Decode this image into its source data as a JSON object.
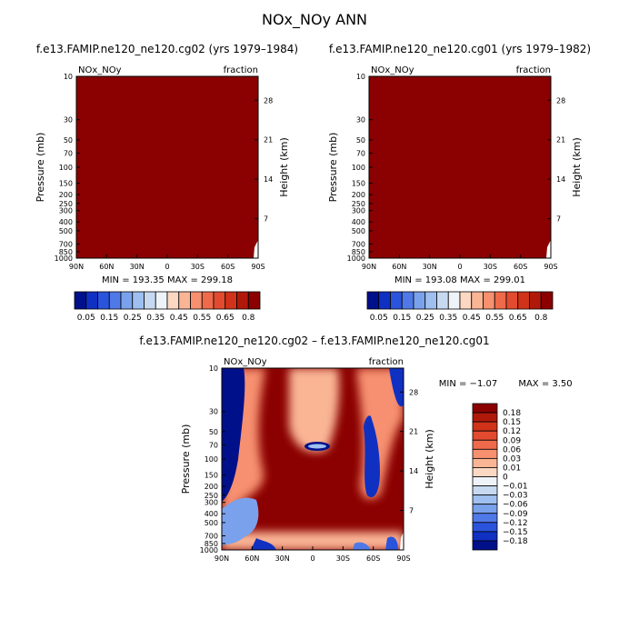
{
  "page": {
    "title": "NOx_NOy ANN"
  },
  "chart_data": [
    {
      "type": "heatmap",
      "title": "f.e13.FAMIP.ne120_ne120.cg02 (yrs 1979–1984)",
      "left_label": "NOx_NOy",
      "right_label": "fraction",
      "ylabel": "Pressure (mb)",
      "ylabel_right": "Height (km)",
      "x_ticks": [
        "90N",
        "60N",
        "30N",
        "0",
        "30S",
        "60S",
        "90S"
      ],
      "y_ticks": [
        "10",
        "30",
        "50",
        "70",
        "100",
        "150",
        "200",
        "250",
        "300",
        "400",
        "500",
        "700",
        "850",
        "1000"
      ],
      "y_right_ticks": [
        "28",
        "21",
        "14",
        "7"
      ],
      "min_max_text": "MIN = 193.35   MAX = 299.18",
      "colorbar": {
        "labels": [
          "0.05",
          "0.15",
          "0.25",
          "0.35",
          "0.45",
          "0.55",
          "0.65",
          "0.8"
        ]
      },
      "field": "uniform, all values above top contour level (0.8)",
      "fill_color": "#8b0000"
    },
    {
      "type": "heatmap",
      "title": "f.e13.FAMIP.ne120_ne120.cg01 (yrs 1979–1982)",
      "left_label": "NOx_NOy",
      "right_label": "fraction",
      "ylabel": "Pressure (mb)",
      "ylabel_right": "Height (km)",
      "x_ticks": [
        "90N",
        "60N",
        "30N",
        "0",
        "30S",
        "60S",
        "90S"
      ],
      "y_ticks": [
        "10",
        "30",
        "50",
        "70",
        "100",
        "150",
        "200",
        "250",
        "300",
        "400",
        "500",
        "700",
        "850",
        "1000"
      ],
      "y_right_ticks": [
        "28",
        "21",
        "14",
        "7"
      ],
      "min_max_text": "MIN = 193.08   MAX = 299.01",
      "colorbar": {
        "labels": [
          "0.05",
          "0.15",
          "0.25",
          "0.35",
          "0.45",
          "0.55",
          "0.65",
          "0.8"
        ]
      },
      "field": "uniform, all values above top contour level (0.8)",
      "fill_color": "#8b0000"
    },
    {
      "type": "heatmap",
      "title": "f.e13.FAMIP.ne120_ne120.cg02 – f.e13.FAMIP.ne120_ne120.cg01",
      "left_label": "NOx_NOy",
      "right_label": "fraction",
      "ylabel": "Pressure (mb)",
      "ylabel_right": "Height (km)",
      "x_ticks": [
        "90N",
        "60N",
        "30N",
        "0",
        "30S",
        "60S",
        "90S"
      ],
      "y_ticks": [
        "10",
        "30",
        "50",
        "70",
        "100",
        "150",
        "200",
        "250",
        "300",
        "400",
        "500",
        "700",
        "850",
        "1000"
      ],
      "y_right_ticks": [
        "28",
        "21",
        "14",
        "7"
      ],
      "min_text": "MIN =   −1.07",
      "max_text": "MAX =     3.50",
      "colorbar": {
        "labels": [
          "0.18",
          "0.15",
          "0.12",
          "0.09",
          "0.06",
          "0.03",
          "0.01",
          "0",
          "−0.01",
          "−0.03",
          "−0.06",
          "−0.09",
          "−0.12",
          "−0.15",
          "−0.18"
        ],
        "colors": [
          "#8b0000",
          "#b0190a",
          "#d03319",
          "#e24b2f",
          "#ef6a4a",
          "#f6906f",
          "#fab595",
          "#fcd8c2",
          "#eef3fa",
          "#c6d9f1",
          "#9ebff0",
          "#7aa1eb",
          "#5079e8",
          "#2b54dc",
          "#1030c2",
          "#00108a"
        ]
      },
      "field": "difference: positive (dark red) over most of domain; strong negative near 90N stratosphere, 60S mid-levels and near-surface high latitudes; small negative cell near 0 at 70 mb"
    }
  ]
}
